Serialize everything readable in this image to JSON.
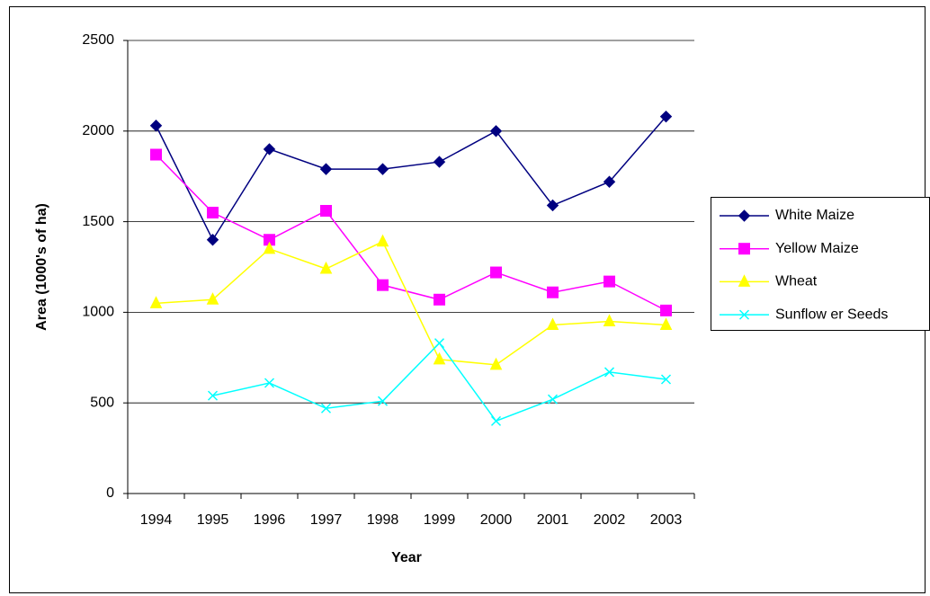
{
  "chart_data": {
    "type": "line",
    "x_label": "Year",
    "y_label": "Area (1000's of ha)",
    "categories": [
      "1994",
      "1995",
      "1996",
      "1997",
      "1998",
      "1999",
      "2000",
      "2001",
      "2002",
      "2003"
    ],
    "series": [
      {
        "name": "White Maize",
        "color": "#000080",
        "marker": "diamond",
        "values": [
          2030,
          1400,
          1900,
          1790,
          1790,
          1830,
          2000,
          1590,
          1720,
          2080
        ]
      },
      {
        "name": "Yellow Maize",
        "color": "#ff00ff",
        "marker": "square",
        "values": [
          1870,
          1550,
          1400,
          1560,
          1150,
          1070,
          1220,
          1110,
          1170,
          1010
        ]
      },
      {
        "name": "Wheat",
        "color": "#ffff00",
        "marker": "triangle",
        "values": [
          1050,
          1070,
          1350,
          1240,
          1390,
          740,
          710,
          930,
          950,
          930
        ]
      },
      {
        "name": "Sunflow er Seeds",
        "color": "#00ffff",
        "marker": "x",
        "values": [
          null,
          540,
          610,
          470,
          510,
          830,
          400,
          520,
          670,
          630
        ]
      }
    ],
    "ylim": [
      0,
      2500
    ],
    "yticks": [
      0,
      500,
      1000,
      1500,
      2000,
      2500
    ],
    "grid": true,
    "legend": "right"
  }
}
